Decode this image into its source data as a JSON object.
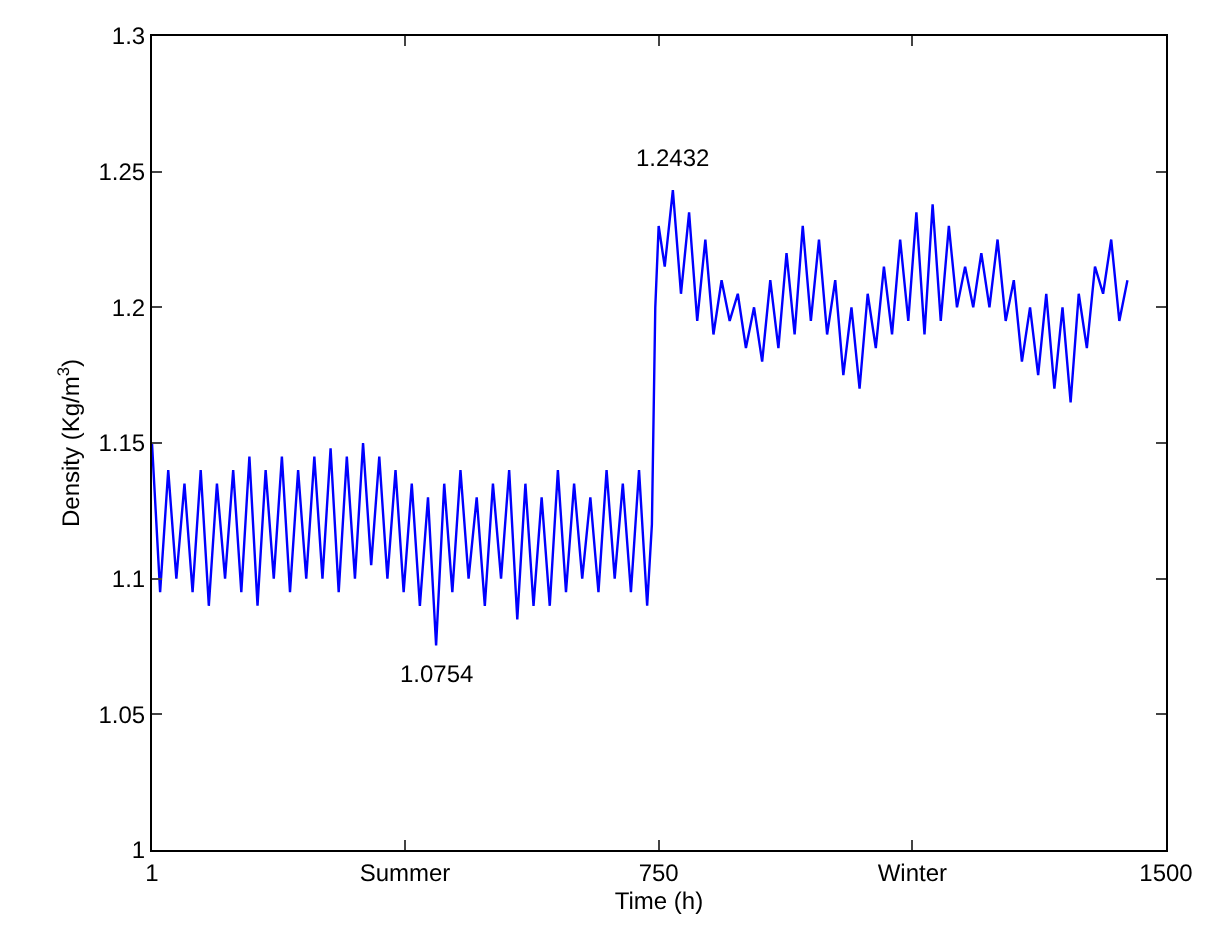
{
  "chart_data": {
    "type": "line",
    "xlabel": "Time (h)",
    "ylabel": "Density (Kg/m$^{3}$)",
    "xlim": [
      1,
      1500
    ],
    "xticks": [
      1,
      {
        "value": 375,
        "label": "Summer"
      },
      750,
      {
        "value": 1125,
        "label": "Winter"
      },
      1500
    ],
    "ylim": [
      1,
      1.3
    ],
    "yticks": [
      1,
      1.05,
      1.1,
      1.15,
      1.2,
      1.25,
      1.3
    ],
    "marker": "none",
    "line_style": "solid",
    "annotations": [
      {
        "text": "1.0754",
        "x": 421,
        "y": 1.0754
      },
      {
        "text": "1.2432",
        "x": 771,
        "y": 1.2432
      }
    ],
    "series": [
      {
        "color": "#0000ff",
        "x": [
          1,
          13,
          25,
          37,
          49,
          61,
          73,
          85,
          97,
          109,
          121,
          133,
          145,
          157,
          169,
          181,
          193,
          205,
          217,
          229,
          241,
          253,
          265,
          277,
          289,
          301,
          313,
          325,
          337,
          349,
          361,
          373,
          385,
          397,
          409,
          421,
          433,
          445,
          457,
          469,
          481,
          493,
          505,
          517,
          529,
          541,
          553,
          565,
          577,
          589,
          601,
          613,
          625,
          637,
          649,
          661,
          673,
          685,
          697,
          709,
          721,
          733,
          740,
          745,
          750,
          759,
          771,
          783,
          795,
          807,
          819,
          831,
          843,
          855,
          867,
          879,
          891,
          903,
          915,
          927,
          939,
          951,
          963,
          975,
          987,
          999,
          1011,
          1023,
          1035,
          1047,
          1059,
          1071,
          1083,
          1095,
          1107,
          1119,
          1131,
          1143,
          1155,
          1167,
          1179,
          1191,
          1203,
          1215,
          1227,
          1239,
          1251,
          1263,
          1275,
          1287,
          1299,
          1311,
          1323,
          1335,
          1347,
          1359,
          1371,
          1383,
          1395,
          1407,
          1419,
          1431,
          1443
        ],
        "values": [
          1.15,
          1.095,
          1.14,
          1.1,
          1.135,
          1.095,
          1.14,
          1.09,
          1.135,
          1.1,
          1.14,
          1.095,
          1.145,
          1.09,
          1.14,
          1.1,
          1.145,
          1.095,
          1.14,
          1.1,
          1.145,
          1.1,
          1.148,
          1.095,
          1.145,
          1.1,
          1.15,
          1.105,
          1.145,
          1.1,
          1.14,
          1.095,
          1.135,
          1.09,
          1.13,
          1.0754,
          1.135,
          1.095,
          1.14,
          1.1,
          1.13,
          1.09,
          1.135,
          1.1,
          1.14,
          1.085,
          1.135,
          1.09,
          1.13,
          1.09,
          1.14,
          1.095,
          1.135,
          1.1,
          1.13,
          1.095,
          1.14,
          1.1,
          1.135,
          1.095,
          1.14,
          1.09,
          1.12,
          1.2,
          1.23,
          1.215,
          1.2432,
          1.205,
          1.235,
          1.195,
          1.225,
          1.19,
          1.21,
          1.195,
          1.205,
          1.185,
          1.2,
          1.18,
          1.21,
          1.185,
          1.22,
          1.19,
          1.23,
          1.195,
          1.225,
          1.19,
          1.21,
          1.175,
          1.2,
          1.17,
          1.205,
          1.185,
          1.215,
          1.19,
          1.225,
          1.195,
          1.235,
          1.19,
          1.238,
          1.195,
          1.23,
          1.2,
          1.215,
          1.2,
          1.22,
          1.2,
          1.225,
          1.195,
          1.21,
          1.18,
          1.2,
          1.175,
          1.205,
          1.17,
          1.2,
          1.165,
          1.205,
          1.185,
          1.215,
          1.205,
          1.225,
          1.195,
          1.21
        ]
      }
    ]
  }
}
